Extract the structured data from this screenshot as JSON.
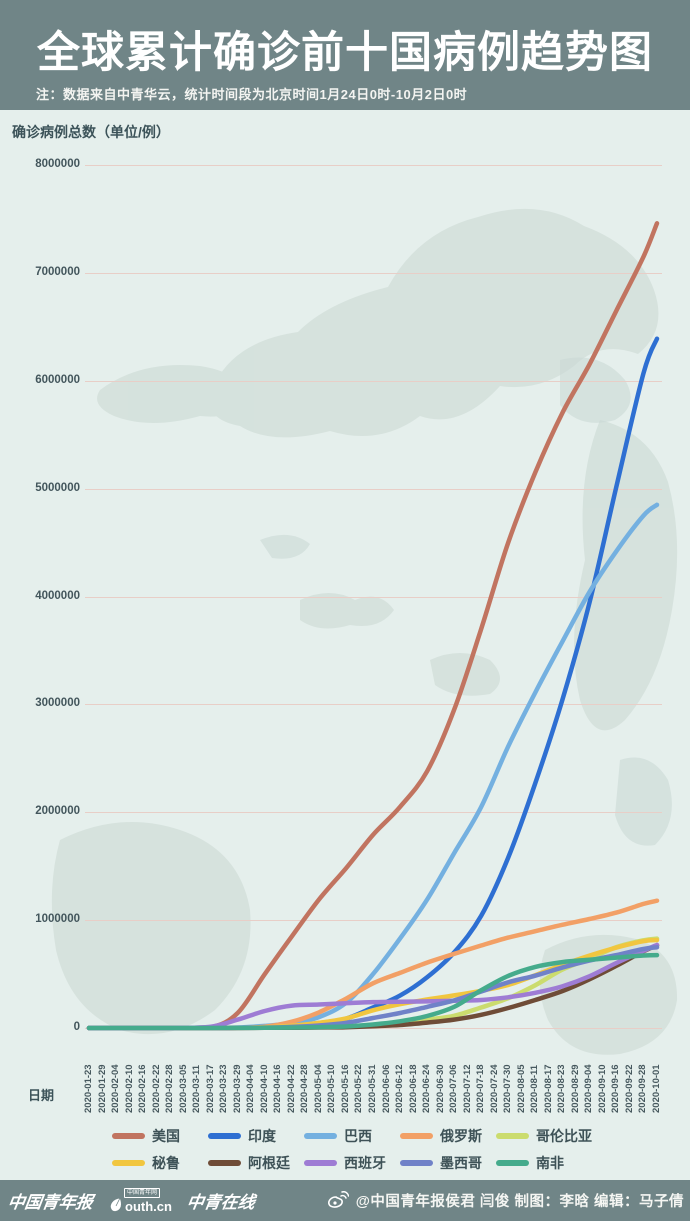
{
  "page": {
    "bg_color": "#e5efec",
    "accent_color": "#708587",
    "gridline_color": "#e8cec7"
  },
  "banner": {
    "title": "全球累计确诊前十国病例趋势图",
    "note": "注：数据来自中青华云，统计时间段为北京时间1月24日0时-10月2日0时"
  },
  "chart_data": {
    "type": "line",
    "title": "全球累计确诊前十国病例趋势图",
    "ylabel": "确诊病例总数（单位/例）",
    "xlabel": "日期",
    "ylim": [
      0,
      8000000
    ],
    "y_ticks": [
      8000000,
      7000000,
      6000000,
      5000000,
      4000000,
      3000000,
      2000000,
      1000000,
      0
    ],
    "grid": "horizontal",
    "legend_position": "bottom",
    "x_labels": [
      "2020-01-23",
      "2020-01-29",
      "2020-02-04",
      "2020-02-10",
      "2020-02-16",
      "2020-02-22",
      "2020-02-28",
      "2020-03-05",
      "2020-03-11",
      "2020-03-17",
      "2020-03-23",
      "2020-03-29",
      "2020-04-04",
      "2020-04-10",
      "2020-04-16",
      "2020-04-22",
      "2020-04-28",
      "2020-05-04",
      "2020-05-10",
      "2020-05-16",
      "2020-05-22",
      "2020-05-31",
      "2020-06-06",
      "2020-06-12",
      "2020-06-18",
      "2020-06-24",
      "2020-06-30",
      "2020-07-06",
      "2020-07-12",
      "2020-07-18",
      "2020-07-24",
      "2020-07-30",
      "2020-08-05",
      "2020-08-11",
      "2020-08-17",
      "2020-08-23",
      "2020-08-29",
      "2020-09-04",
      "2020-09-10",
      "2020-09-16",
      "2020-09-22",
      "2020-09-28",
      "2020-10-01"
    ],
    "sample_tick_indices": [
      0,
      3,
      6,
      9,
      11,
      13,
      15,
      17,
      19,
      21,
      23,
      25,
      27,
      29,
      31,
      33,
      35,
      37,
      39,
      41,
      42
    ],
    "series": [
      {
        "name": "美国",
        "color": "#c17460",
        "values": [
          1,
          12,
          62,
          6400,
          140000,
          500000,
          850000,
          1190000,
          1480000,
          1790000,
          2050000,
          2380000,
          2950000,
          3700000,
          4500000,
          5150000,
          5700000,
          6150000,
          6650000,
          7150000,
          7460000
        ]
      },
      {
        "name": "印度",
        "color": "#2e6fd2",
        "values": [
          0,
          3,
          3,
          140,
          1000,
          7600,
          21000,
          46000,
          86000,
          190000,
          300000,
          470000,
          700000,
          1040000,
          1580000,
          2270000,
          3040000,
          3940000,
          5020000,
          6070000,
          6390000
        ]
      },
      {
        "name": "巴西",
        "color": "#74b0e0",
        "values": [
          0,
          0,
          1,
          300,
          4300,
          19600,
          45800,
          101000,
          233000,
          500000,
          829000,
          1190000,
          1620000,
          2050000,
          2610000,
          3110000,
          3580000,
          4040000,
          4420000,
          4750000,
          4850000
        ]
      },
      {
        "name": "俄罗斯",
        "color": "#f2a066",
        "values": [
          0,
          2,
          2,
          114,
          1530,
          12000,
          58000,
          145000,
          272000,
          414000,
          511000,
          606000,
          687000,
          765000,
          838000,
          897000,
          957000,
          1010000,
          1070000,
          1150000,
          1180000
        ]
      },
      {
        "name": "哥伦比亚",
        "color": "#cbdc6e",
        "values": [
          0,
          0,
          1,
          65,
          700,
          2400,
          4300,
          7700,
          14200,
          29000,
          46000,
          78000,
          113000,
          190000,
          276000,
          397000,
          541000,
          641000,
          750000,
          813000,
          829000
        ]
      },
      {
        "name": "秘鲁",
        "color": "#f1c63f",
        "values": [
          0,
          0,
          1,
          117,
          950,
          5900,
          20000,
          47400,
          88500,
          164000,
          221000,
          264000,
          302000,
          345000,
          400000,
          489000,
          585000,
          670000,
          745000,
          805000,
          815000
        ]
      },
      {
        "name": "阿根廷",
        "color": "#6f4c37",
        "values": [
          0,
          0,
          1,
          65,
          690,
          1975,
          3200,
          4900,
          7800,
          16900,
          28000,
          50000,
          77800,
          122000,
          185000,
          260000,
          342000,
          451000,
          577000,
          712000,
          765000
        ]
      },
      {
        "name": "西班牙",
        "color": "#9e7cd4",
        "values": [
          0,
          2,
          32,
          11800,
          78000,
          158000,
          208000,
          218000,
          230000,
          240000,
          243000,
          247000,
          252000,
          260000,
          285000,
          326000,
          386000,
          479000,
          603000,
          716000,
          770000
        ]
      },
      {
        "name": "墨西哥",
        "color": "#7082c8",
        "values": [
          0,
          0,
          1,
          53,
          850,
          3440,
          10000,
          23500,
          47100,
          93000,
          139000,
          196000,
          256000,
          338000,
          424000,
          485000,
          560000,
          625000,
          676000,
          733000,
          748000
        ]
      },
      {
        "name": "南非",
        "color": "#45ab8c",
        "values": [
          0,
          0,
          1,
          62,
          1280,
          2028,
          3635,
          7220,
          14355,
          32700,
          61900,
          111000,
          196000,
          350000,
          483000,
          566000,
          611000,
          633000,
          653000,
          672000,
          676000
        ]
      }
    ]
  },
  "footer": {
    "logo_cyd": "中国青年报",
    "logo_youth_badge": "中国青年网",
    "logo_youth": "outh.cn",
    "logo_zqzx": "中青在线",
    "credit": "@中国青年报侯君 闫俊 制图：李晗 编辑：马子倩"
  }
}
